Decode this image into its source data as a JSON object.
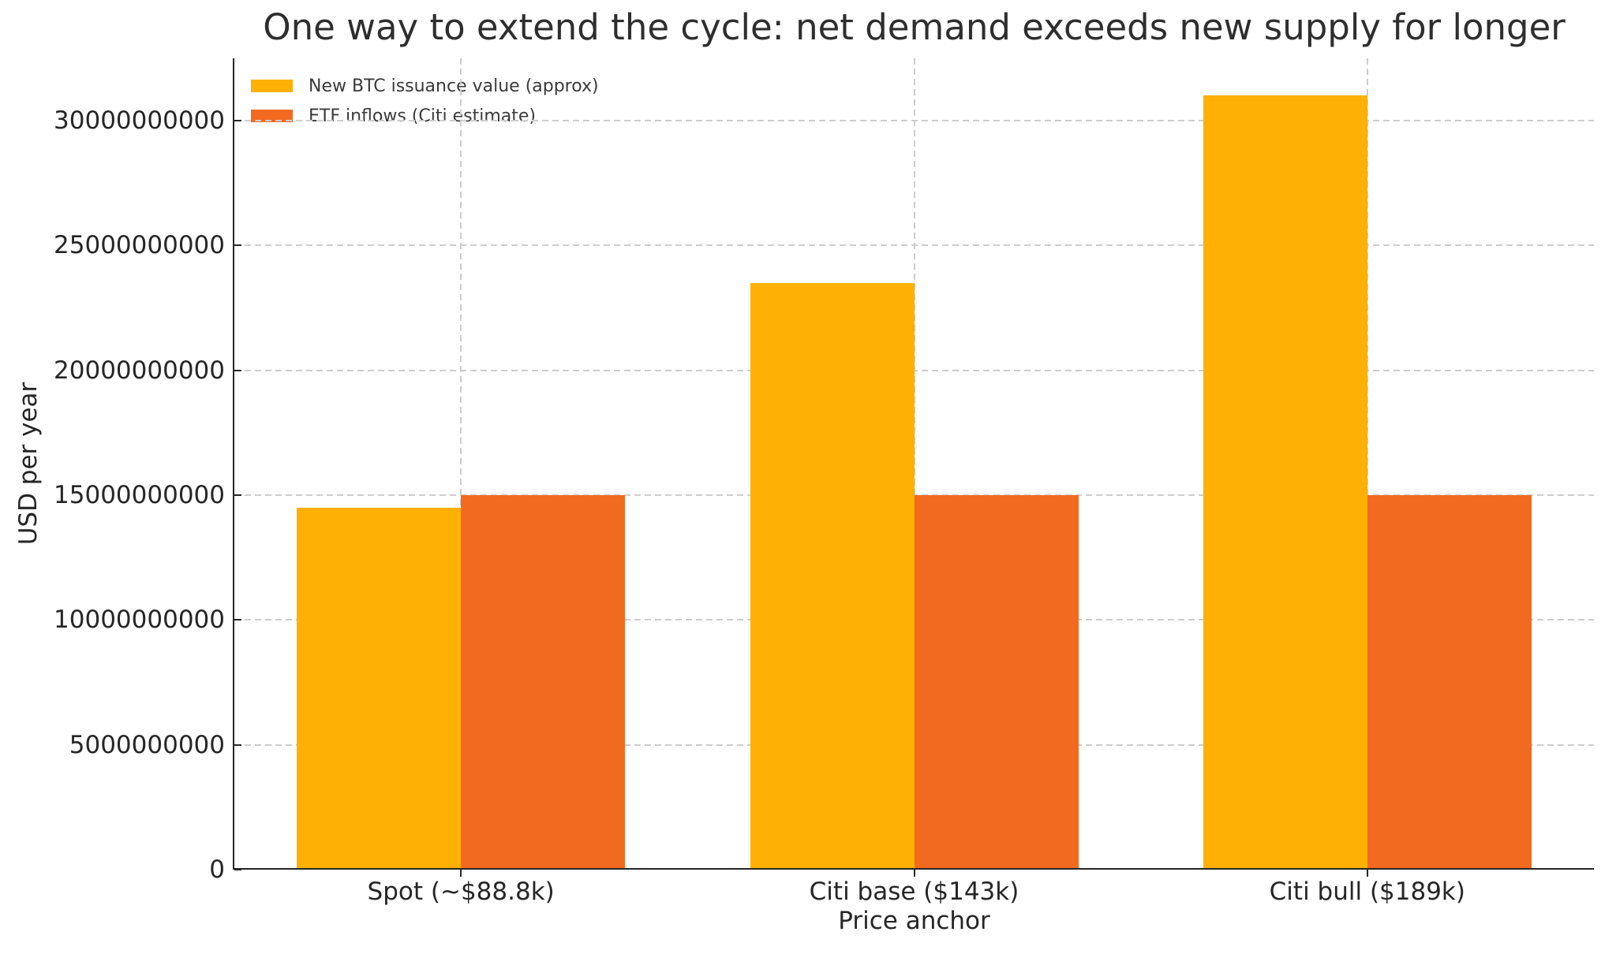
{
  "chart_data": {
    "type": "bar",
    "title": "One way to extend the cycle: net demand exceeds new supply for longer",
    "xlabel": "Price anchor",
    "ylabel": "USD per year",
    "categories": [
      "Spot (~$88.8k)",
      "Citi base ($143k)",
      "Citi bull ($189k)"
    ],
    "series": [
      {
        "name": "New BTC issuance value (approx)",
        "color": "#FFB005",
        "values": [
          14500000000,
          23500000000,
          31000000000
        ]
      },
      {
        "name": "ETF inflows (Citi estimate)",
        "color": "#F26A20",
        "values": [
          15000000000,
          15000000000,
          15000000000
        ]
      }
    ],
    "yticks": [
      0,
      5000000000,
      10000000000,
      15000000000,
      20000000000,
      25000000000,
      30000000000
    ],
    "ylim": [
      0,
      32500000000
    ],
    "grid": true,
    "gridline_style": "dashed",
    "legend_position": "upper-left",
    "colors": {
      "text": "#262626",
      "grid": "#cdcdcd",
      "spine": "#262626",
      "background": "#ffffff"
    }
  }
}
